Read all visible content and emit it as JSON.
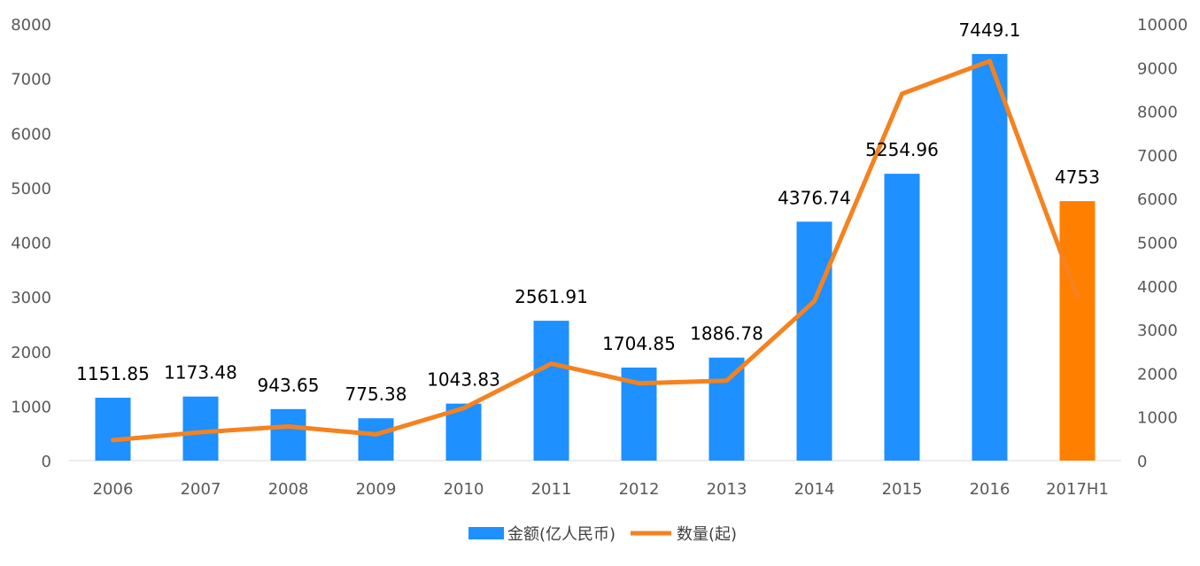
{
  "chart_data": {
    "type": "bar",
    "categories": [
      "2006",
      "2007",
      "2008",
      "2009",
      "2010",
      "2011",
      "2012",
      "2013",
      "2014",
      "2015",
      "2016",
      "2017H1"
    ],
    "series": [
      {
        "name": "金额(亿人民币)",
        "type": "bar",
        "axis": "left",
        "color": "#1E90FF",
        "highlight_color": "#FF7F00",
        "highlight_index": 11,
        "values": [
          1151.85,
          1173.48,
          943.65,
          775.38,
          1043.83,
          2561.91,
          1704.85,
          1886.78,
          4376.74,
          5254.96,
          7449.1,
          4753
        ],
        "labels": [
          "1151.85",
          "1173.48",
          "943.65",
          "775.38",
          "1043.83",
          "2561.91",
          "1704.85",
          "1886.78",
          "4376.74",
          "5254.96",
          "7449.1",
          "4753"
        ]
      },
      {
        "name": "数量(起)",
        "type": "line",
        "axis": "right",
        "color": "#F5821F",
        "values": [
          470,
          650,
          780,
          600,
          1200,
          2220,
          1770,
          1830,
          3650,
          8400,
          9150,
          3750
        ]
      }
    ],
    "y_left": {
      "range": [
        0,
        8000
      ],
      "ticks": [
        "0",
        "1000",
        "2000",
        "3000",
        "4000",
        "5000",
        "6000",
        "7000",
        "8000"
      ]
    },
    "y_right": {
      "range": [
        0,
        10000
      ],
      "ticks": [
        "0",
        "1000",
        "2000",
        "3000",
        "4000",
        "5000",
        "6000",
        "7000",
        "8000",
        "9000",
        "10000"
      ]
    },
    "grid": false,
    "legend_position": "bottom-center"
  }
}
